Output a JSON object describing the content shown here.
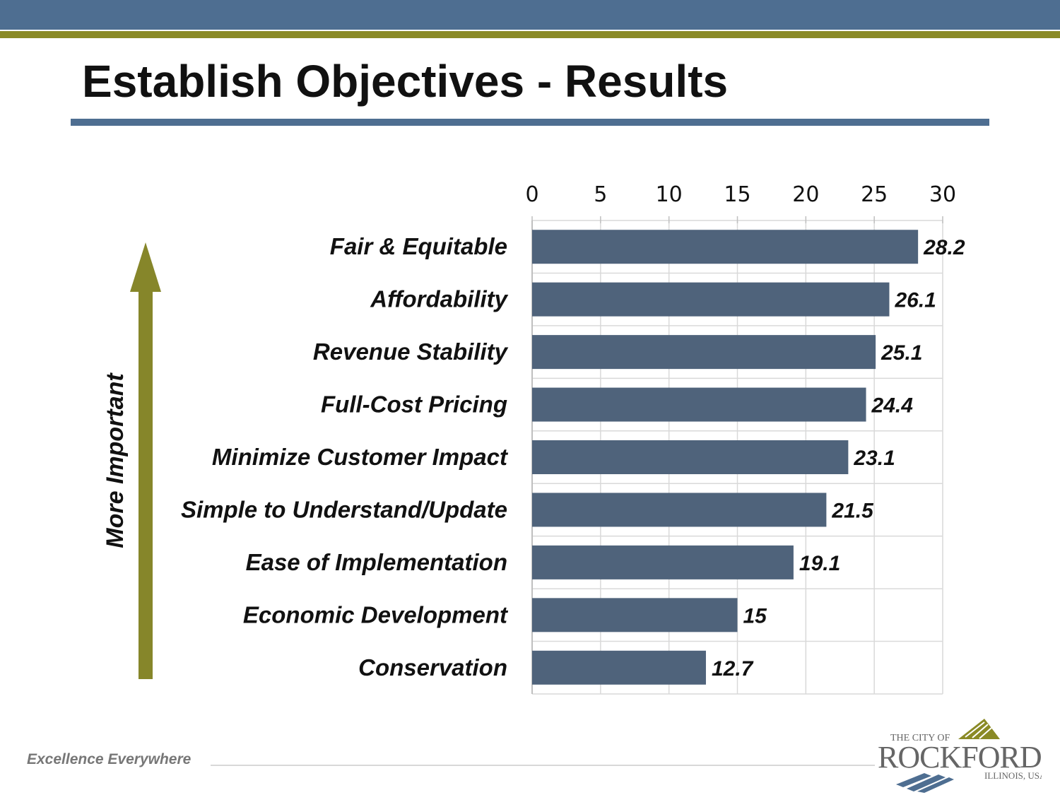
{
  "slide": {
    "title": "Establish Objectives - Results",
    "arrow_label": "More Important",
    "footer_tagline": "Excellence Everywhere",
    "colors": {
      "header_band": "#4e6e91",
      "accent_olive": "#8a8a26",
      "bar": "#4f637b",
      "grid": "#d9d9d9"
    }
  },
  "logo": {
    "small": "THE CITY OF",
    "main": "ROCKFORD",
    "sub": "ILLINOIS, USA"
  },
  "chart_data": {
    "type": "bar",
    "orientation": "horizontal",
    "title": "Establish Objectives - Results",
    "categories": [
      "Fair & Equitable",
      "Affordability",
      "Revenue Stability",
      "Full-Cost Pricing",
      "Minimize Customer Impact",
      "Simple to Understand/Update",
      "Ease of Implementation",
      "Economic Development",
      "Conservation"
    ],
    "values": [
      28.2,
      26.1,
      25.1,
      24.4,
      23.1,
      21.5,
      19.1,
      15,
      12.7
    ],
    "value_labels": [
      "28.2",
      "26.1",
      "25.1",
      "24.4",
      "23.1",
      "21.5",
      "19.1",
      "15",
      "12.7"
    ],
    "xlim": [
      0,
      30
    ],
    "xticks": [
      0,
      5,
      10,
      15,
      20,
      25,
      30
    ],
    "xtick_labels": [
      "0",
      "5",
      "10",
      "15",
      "20",
      "25",
      "30"
    ],
    "x_axis_position": "top",
    "grid": true,
    "legend": "none"
  }
}
